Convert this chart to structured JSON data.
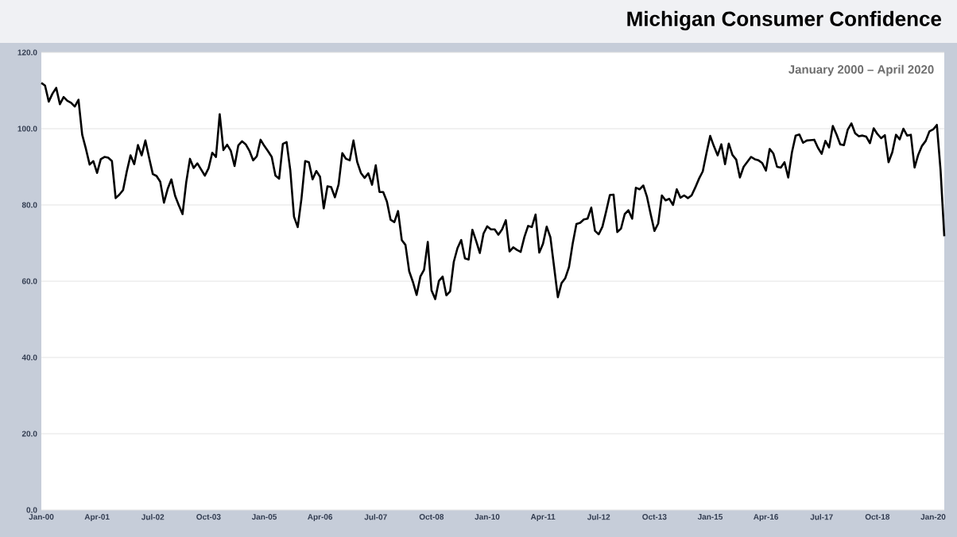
{
  "chart_data": {
    "type": "line",
    "title": "Michigan Consumer Confidence",
    "subtitle": "January 2000 – April 2020",
    "x": [
      "2000-01",
      "2000-02",
      "2000-03",
      "2000-04",
      "2000-05",
      "2000-06",
      "2000-07",
      "2000-08",
      "2000-09",
      "2000-10",
      "2000-11",
      "2000-12",
      "2001-01",
      "2001-02",
      "2001-03",
      "2001-04",
      "2001-05",
      "2001-06",
      "2001-07",
      "2001-08",
      "2001-09",
      "2001-10",
      "2001-11",
      "2001-12",
      "2002-01",
      "2002-02",
      "2002-03",
      "2002-04",
      "2002-05",
      "2002-06",
      "2002-07",
      "2002-08",
      "2002-09",
      "2002-10",
      "2002-11",
      "2002-12",
      "2003-01",
      "2003-02",
      "2003-03",
      "2003-04",
      "2003-05",
      "2003-06",
      "2003-07",
      "2003-08",
      "2003-09",
      "2003-10",
      "2003-11",
      "2003-12",
      "2004-01",
      "2004-02",
      "2004-03",
      "2004-04",
      "2004-05",
      "2004-06",
      "2004-07",
      "2004-08",
      "2004-09",
      "2004-10",
      "2004-11",
      "2004-12",
      "2005-01",
      "2005-02",
      "2005-03",
      "2005-04",
      "2005-05",
      "2005-06",
      "2005-07",
      "2005-08",
      "2005-09",
      "2005-10",
      "2005-11",
      "2005-12",
      "2006-01",
      "2006-02",
      "2006-03",
      "2006-04",
      "2006-05",
      "2006-06",
      "2006-07",
      "2006-08",
      "2006-09",
      "2006-10",
      "2006-11",
      "2006-12",
      "2007-01",
      "2007-02",
      "2007-03",
      "2007-04",
      "2007-05",
      "2007-06",
      "2007-07",
      "2007-08",
      "2007-09",
      "2007-10",
      "2007-11",
      "2007-12",
      "2008-01",
      "2008-02",
      "2008-03",
      "2008-04",
      "2008-05",
      "2008-06",
      "2008-07",
      "2008-08",
      "2008-09",
      "2008-10",
      "2008-11",
      "2008-12",
      "2009-01",
      "2009-02",
      "2009-03",
      "2009-04",
      "2009-05",
      "2009-06",
      "2009-07",
      "2009-08",
      "2009-09",
      "2009-10",
      "2009-11",
      "2009-12",
      "2010-01",
      "2010-02",
      "2010-03",
      "2010-04",
      "2010-05",
      "2010-06",
      "2010-07",
      "2010-08",
      "2010-09",
      "2010-10",
      "2010-11",
      "2010-12",
      "2011-01",
      "2011-02",
      "2011-03",
      "2011-04",
      "2011-05",
      "2011-06",
      "2011-07",
      "2011-08",
      "2011-09",
      "2011-10",
      "2011-11",
      "2011-12",
      "2012-01",
      "2012-02",
      "2012-03",
      "2012-04",
      "2012-05",
      "2012-06",
      "2012-07",
      "2012-08",
      "2012-09",
      "2012-10",
      "2012-11",
      "2012-12",
      "2013-01",
      "2013-02",
      "2013-03",
      "2013-04",
      "2013-05",
      "2013-06",
      "2013-07",
      "2013-08",
      "2013-09",
      "2013-10",
      "2013-11",
      "2013-12",
      "2014-01",
      "2014-02",
      "2014-03",
      "2014-04",
      "2014-05",
      "2014-06",
      "2014-07",
      "2014-08",
      "2014-09",
      "2014-10",
      "2014-11",
      "2014-12",
      "2015-01",
      "2015-02",
      "2015-03",
      "2015-04",
      "2015-05",
      "2015-06",
      "2015-07",
      "2015-08",
      "2015-09",
      "2015-10",
      "2015-11",
      "2015-12",
      "2016-01",
      "2016-02",
      "2016-03",
      "2016-04",
      "2016-05",
      "2016-06",
      "2016-07",
      "2016-08",
      "2016-09",
      "2016-10",
      "2016-11",
      "2016-12",
      "2017-01",
      "2017-02",
      "2017-03",
      "2017-04",
      "2017-05",
      "2017-06",
      "2017-07",
      "2017-08",
      "2017-09",
      "2017-10",
      "2017-11",
      "2017-12",
      "2018-01",
      "2018-02",
      "2018-03",
      "2018-04",
      "2018-05",
      "2018-06",
      "2018-07",
      "2018-08",
      "2018-09",
      "2018-10",
      "2018-11",
      "2018-12",
      "2019-01",
      "2019-02",
      "2019-03",
      "2019-04",
      "2019-05",
      "2019-06",
      "2019-07",
      "2019-08",
      "2019-09",
      "2019-10",
      "2019-11",
      "2019-12",
      "2020-01",
      "2020-02",
      "2020-03",
      "2020-04"
    ],
    "series": [
      {
        "color": "#000000",
        "values": [
          112.0,
          111.3,
          107.1,
          109.2,
          110.7,
          106.4,
          108.3,
          107.3,
          106.8,
          105.8,
          107.6,
          98.4,
          94.7,
          90.6,
          91.5,
          88.4,
          92.0,
          92.6,
          92.4,
          91.5,
          81.8,
          82.7,
          83.9,
          88.8,
          93.0,
          90.7,
          95.7,
          93.0,
          96.9,
          92.4,
          88.1,
          87.6,
          86.1,
          80.6,
          84.2,
          86.7,
          82.4,
          79.9,
          77.6,
          86.0,
          92.1,
          89.7,
          90.9,
          89.3,
          87.7,
          89.6,
          93.7,
          92.6,
          103.8,
          94.4,
          95.8,
          94.2,
          90.2,
          95.6,
          96.7,
          95.9,
          94.2,
          91.7,
          92.8,
          97.1,
          95.5,
          94.1,
          92.6,
          87.7,
          86.9,
          96.0,
          96.5,
          89.1,
          76.9,
          74.2,
          81.6,
          91.5,
          91.2,
          86.7,
          88.9,
          87.4,
          79.1,
          84.9,
          84.7,
          82.0,
          85.4,
          93.6,
          92.1,
          91.7,
          96.9,
          91.3,
          88.4,
          87.1,
          88.3,
          85.3,
          90.4,
          83.4,
          83.4,
          80.9,
          76.1,
          75.5,
          78.4,
          70.8,
          69.5,
          62.6,
          59.8,
          56.4,
          61.2,
          63.0,
          70.3,
          57.6,
          55.3,
          60.1,
          61.2,
          56.3,
          57.3,
          65.1,
          68.7,
          70.8,
          66.0,
          65.7,
          73.5,
          70.6,
          67.4,
          72.5,
          74.4,
          73.6,
          73.6,
          72.2,
          73.6,
          76.0,
          67.8,
          68.9,
          68.2,
          67.7,
          71.6,
          74.5,
          74.2,
          77.5,
          67.5,
          69.8,
          74.3,
          71.5,
          63.7,
          55.8,
          59.5,
          60.8,
          63.7,
          69.9,
          75.0,
          75.3,
          76.2,
          76.4,
          79.3,
          73.2,
          72.3,
          74.3,
          78.3,
          82.6,
          82.7,
          72.9,
          73.8,
          77.6,
          78.6,
          76.4,
          84.5,
          84.1,
          85.1,
          82.1,
          77.5,
          73.2,
          75.1,
          82.5,
          81.2,
          81.6,
          80.0,
          84.1,
          81.9,
          82.5,
          81.8,
          82.5,
          84.6,
          86.9,
          88.8,
          93.6,
          98.1,
          95.4,
          93.0,
          95.9,
          90.7,
          96.1,
          93.1,
          91.9,
          87.2,
          90.0,
          91.3,
          92.6,
          92.0,
          91.7,
          91.0,
          89.0,
          94.7,
          93.5,
          90.0,
          89.8,
          91.2,
          87.2,
          93.8,
          98.2,
          98.5,
          96.3,
          96.9,
          97.0,
          97.1,
          95.0,
          93.4,
          96.8,
          95.1,
          100.7,
          98.5,
          95.9,
          95.7,
          99.7,
          101.4,
          98.8,
          98.0,
          98.2,
          97.9,
          96.2,
          100.1,
          98.6,
          97.5,
          98.3,
          91.2,
          93.8,
          98.4,
          97.2,
          100.0,
          98.2,
          98.4,
          89.8,
          93.2,
          95.5,
          96.8,
          99.3,
          99.8,
          101.0,
          89.1,
          71.8
        ]
      }
    ],
    "xlim": [
      "2000-01",
      "2020-04"
    ],
    "xticks": [
      {
        "value": "2000-01",
        "label": "Jan-00"
      },
      {
        "value": "2001-04",
        "label": "Apr-01"
      },
      {
        "value": "2002-07",
        "label": "Jul-02"
      },
      {
        "value": "2003-10",
        "label": "Oct-03"
      },
      {
        "value": "2005-01",
        "label": "Jan-05"
      },
      {
        "value": "2006-04",
        "label": "Apr-06"
      },
      {
        "value": "2007-07",
        "label": "Jul-07"
      },
      {
        "value": "2008-10",
        "label": "Oct-08"
      },
      {
        "value": "2010-01",
        "label": "Jan-10"
      },
      {
        "value": "2011-04",
        "label": "Apr-11"
      },
      {
        "value": "2012-07",
        "label": "Jul-12"
      },
      {
        "value": "2013-10",
        "label": "Oct-13"
      },
      {
        "value": "2015-01",
        "label": "Jan-15"
      },
      {
        "value": "2016-04",
        "label": "Apr-16"
      },
      {
        "value": "2017-07",
        "label": "Jul-17"
      },
      {
        "value": "2018-10",
        "label": "Oct-18"
      },
      {
        "value": "2020-01",
        "label": "Jan-20"
      }
    ],
    "ylim": [
      0,
      120
    ],
    "yticks": [
      {
        "value": 0,
        "label": "0.0"
      },
      {
        "value": 20,
        "label": "20.0"
      },
      {
        "value": 40,
        "label": "40.0"
      },
      {
        "value": 60,
        "label": "60.0"
      },
      {
        "value": 80,
        "label": "80.0"
      },
      {
        "value": 100,
        "label": "100.0"
      },
      {
        "value": 120,
        "label": "120.0"
      }
    ],
    "grid": "y",
    "legend": false,
    "marker": "none",
    "line_style": "solid"
  }
}
